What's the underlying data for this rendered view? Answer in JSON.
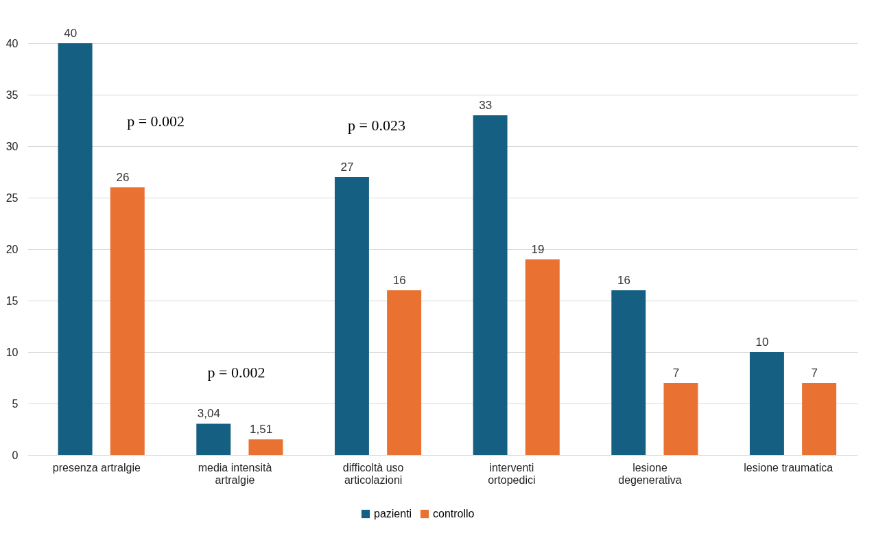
{
  "chart_data": {
    "type": "bar",
    "categories": [
      "presenza artralgie",
      "media intensità artralgie",
      "difficoltà uso articolazioni",
      "interventi ortopedici",
      "lesione degenerativa",
      "lesione traumatica"
    ],
    "series": [
      {
        "name": "pazienti",
        "color": "#156082",
        "values": [
          40,
          3.04,
          27,
          33,
          16,
          10
        ],
        "value_labels": [
          "40",
          "3,04",
          "27",
          "33",
          "16",
          "10"
        ]
      },
      {
        "name": "controllo",
        "color": "#e97132",
        "values": [
          26,
          1.51,
          16,
          19,
          7,
          7
        ],
        "value_labels": [
          "26",
          "1,51",
          "16",
          "19",
          "7",
          "7"
        ]
      }
    ],
    "ylim": [
      0,
      40
    ],
    "yticks": [
      0,
      5,
      10,
      15,
      20,
      25,
      30,
      35,
      40
    ],
    "grid": "y",
    "legend": "bottom",
    "annotations": [
      "p = 0.002",
      "p = 0.002",
      "p = 0.023"
    ]
  }
}
